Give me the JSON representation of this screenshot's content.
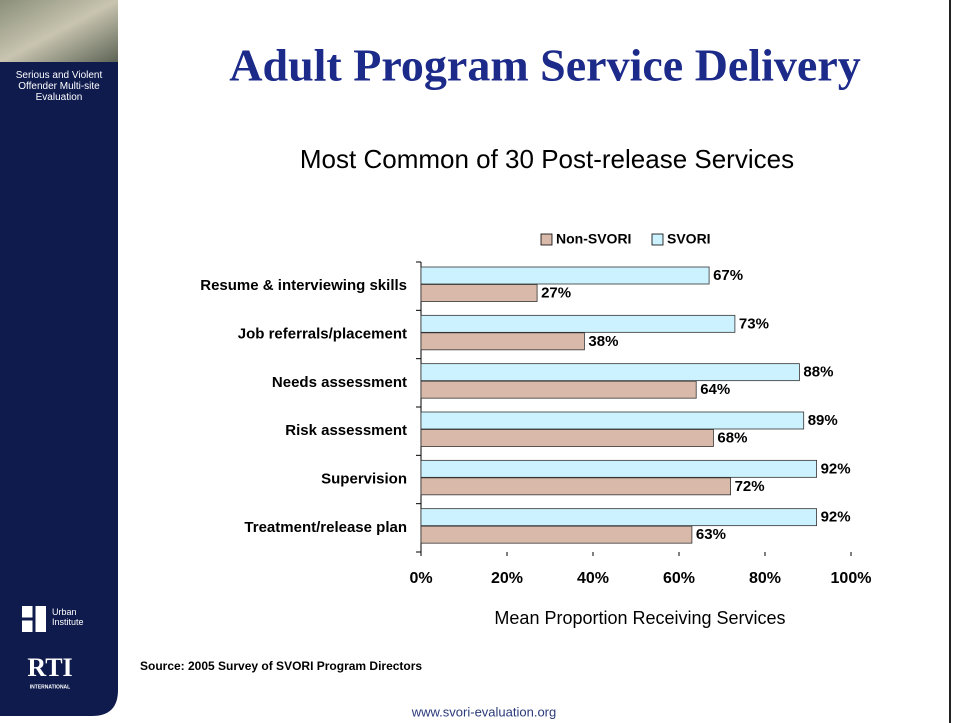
{
  "slide": {
    "title": "Adult Program Service Delivery",
    "sidebar_text": "Serious and Violent Offender Multi-site Evaluation",
    "logo_urban": "Urban Institute",
    "logo_rti": "RTI",
    "logo_rti_sub": "INTERNATIONAL",
    "source": "Source: 2005 Survey of SVORI Program Directors",
    "footer": "www.svori-evaluation.org"
  },
  "chart_data": {
    "type": "hbar",
    "title": "Most Common of 30 Post-release Services",
    "x_label": "Mean Proportion Receiving Services",
    "categories": [
      "Resume & interviewing skills",
      "Job referrals/placement",
      "Needs assessment",
      "Risk assessment",
      "Supervision",
      "Treatment/release plan"
    ],
    "series": [
      {
        "name": "Non-SVORI",
        "color": "#d9b9a9",
        "values": [
          27,
          38,
          64,
          68,
          72,
          63
        ],
        "value_labels": [
          "27%",
          "38%",
          "64%",
          "68%",
          "72%",
          "63%"
        ]
      },
      {
        "name": "SVORI",
        "color": "#ccf2ff",
        "values": [
          67,
          73,
          88,
          89,
          92,
          92
        ],
        "value_labels": [
          "67%",
          "73%",
          "88%",
          "89%",
          "92%",
          "92%"
        ]
      }
    ],
    "xlim": [
      0,
      100
    ],
    "xticks": [
      {
        "value": 0,
        "label": "0%"
      },
      {
        "value": 20,
        "label": "20%"
      },
      {
        "value": 40,
        "label": "40%"
      },
      {
        "value": 60,
        "label": "60%"
      },
      {
        "value": 80,
        "label": "80%"
      },
      {
        "value": 100,
        "label": "100%"
      }
    ],
    "legend": "top"
  }
}
